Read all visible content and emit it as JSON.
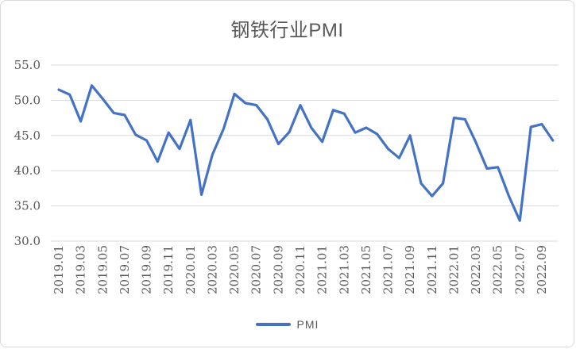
{
  "chart_data": {
    "type": "line",
    "title": "钢铁行业PMI",
    "legend_position": "bottom",
    "grid": "horizontal-only",
    "ylim": [
      30,
      55
    ],
    "ytick_values": [
      55,
      50,
      45,
      40,
      35,
      30
    ],
    "ytick_labels": [
      "55.0",
      "50.0",
      "45.0",
      "40.0",
      "35.0",
      "30.0"
    ],
    "xtick_label_every": 2,
    "categories": [
      "2019.01",
      "2019.02",
      "2019.03",
      "2019.04",
      "2019.05",
      "2019.06",
      "2019.07",
      "2019.08",
      "2019.09",
      "2019.10",
      "2019.11",
      "2019.12",
      "2020.01",
      "2020.02",
      "2020.03",
      "2020.04",
      "2020.05",
      "2020.06",
      "2020.07",
      "2020.08",
      "2020.09",
      "2020.10",
      "2020.11",
      "2020.12",
      "2021.01",
      "2021.02",
      "2021.03",
      "2021.04",
      "2021.05",
      "2021.06",
      "2021.07",
      "2021.08",
      "2021.09",
      "2021.10",
      "2021.11",
      "2021.12",
      "2022.01",
      "2022.02",
      "2022.03",
      "2022.04",
      "2022.05",
      "2022.06",
      "2022.07",
      "2022.08",
      "2022.09",
      "2022.10"
    ],
    "series": [
      {
        "name": "PMI",
        "color": "#4472C4",
        "values": [
          51.5,
          50.8,
          47.0,
          52.1,
          50.2,
          48.2,
          47.9,
          45.1,
          44.3,
          41.3,
          45.4,
          43.1,
          47.2,
          36.6,
          42.3,
          45.9,
          50.9,
          49.6,
          49.3,
          47.3,
          43.8,
          45.5,
          49.3,
          46.1,
          44.1,
          48.6,
          48.1,
          45.4,
          46.1,
          45.2,
          43.1,
          41.8,
          45.0,
          38.2,
          36.4,
          38.2,
          47.5,
          47.3,
          44.0,
          40.3,
          40.5,
          36.4,
          32.9,
          46.2,
          46.6,
          44.3
        ]
      }
    ]
  },
  "colors": {
    "line": "#4472C4",
    "gridline": "#d9d9d9",
    "tick_label": "#595959",
    "title_text": "#595959",
    "frame_border": "#d9d9d9"
  }
}
